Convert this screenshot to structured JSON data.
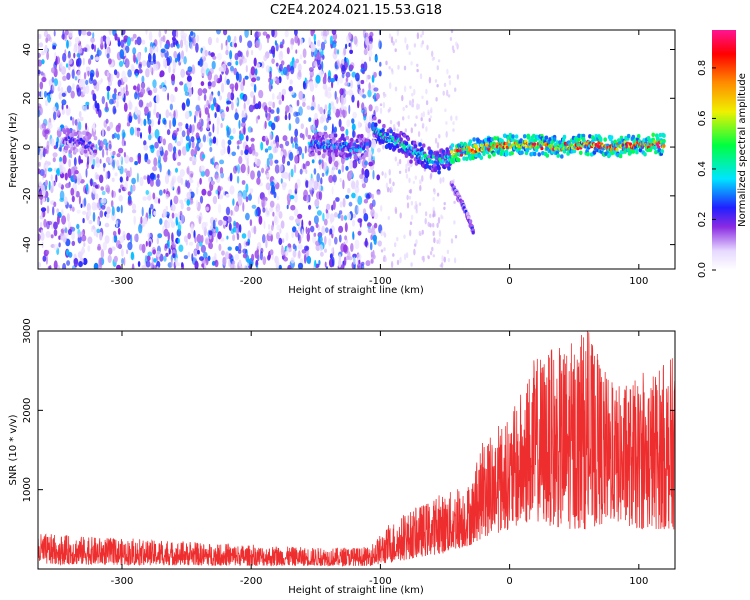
{
  "chart_data": [
    {
      "type": "heatmap",
      "title": "C2E4.2024.021.15.53.G18",
      "xlabel": "Height of straight line (km)",
      "ylabel": "Frequency (Hz)",
      "xlim": [
        -365,
        128
      ],
      "ylim": [
        -50,
        48
      ],
      "xticks": [
        -300,
        -200,
        -100,
        0,
        100
      ],
      "yticks": [
        -40,
        -20,
        0,
        20,
        40
      ],
      "colorbar": {
        "label": "Normalized spectral amplitude",
        "range": [
          0.0,
          0.95
        ],
        "ticks": [
          "0.0",
          "0.2",
          "0.4",
          "0.6",
          "0.8"
        ]
      },
      "features": [
        {
          "name": "noise-region",
          "x_range": [
            -365,
            -100
          ],
          "freq_range": [
            -50,
            48
          ],
          "amplitude": [
            0.05,
            0.3
          ]
        },
        {
          "name": "ridge-segment-1",
          "x": [
            -345,
            -335,
            -325,
            -320
          ],
          "freq": [
            3,
            2,
            1,
            -1
          ],
          "amplitude": 0.25
        },
        {
          "name": "ridge-segment-2",
          "x": [
            -155,
            -140,
            -125,
            -110
          ],
          "freq": [
            1,
            1,
            0,
            0
          ],
          "amplitude": 0.35
        },
        {
          "name": "descending-ridge",
          "x": [
            -105,
            -95,
            -85,
            -75,
            -65,
            -55,
            -45
          ],
          "freq": [
            8,
            4,
            2,
            -2,
            -4,
            -6,
            -4
          ],
          "amplitude": 0.45
        },
        {
          "name": "main-ridge",
          "x": [
            -45,
            -30,
            -15,
            0,
            20,
            40,
            60,
            80,
            100,
            120
          ],
          "freq": [
            -3,
            -1,
            0,
            1,
            1,
            0,
            1,
            0,
            1,
            1
          ],
          "amplitude": 0.85
        },
        {
          "name": "tail-streak",
          "x": [
            -45,
            -35,
            -28
          ],
          "freq": [
            -15,
            -25,
            -35
          ],
          "amplitude": 0.25
        }
      ]
    },
    {
      "type": "line",
      "xlabel": "Height of straight line (km)",
      "ylabel": "SNR (10 * v/v)",
      "xlim": [
        -365,
        128
      ],
      "ylim": [
        0,
        3000
      ],
      "xticks": [
        -300,
        -200,
        -100,
        0,
        100
      ],
      "yticks": [
        1000,
        2000,
        3000
      ],
      "color": "#ee2e2e",
      "envelope": {
        "x": [
          -365,
          -300,
          -200,
          -150,
          -110,
          -90,
          -70,
          -50,
          -30,
          -20,
          -10,
          0,
          20,
          40,
          60,
          80,
          100,
          128
        ],
        "low": [
          60,
          50,
          40,
          40,
          40,
          80,
          150,
          200,
          300,
          400,
          450,
          500,
          600,
          500,
          500,
          600,
          500,
          500
        ],
        "high": [
          450,
          380,
          300,
          270,
          270,
          600,
          800,
          950,
          1100,
          1600,
          1800,
          1900,
          2700,
          2800,
          3000,
          2300,
          2400,
          2700
        ]
      }
    }
  ]
}
